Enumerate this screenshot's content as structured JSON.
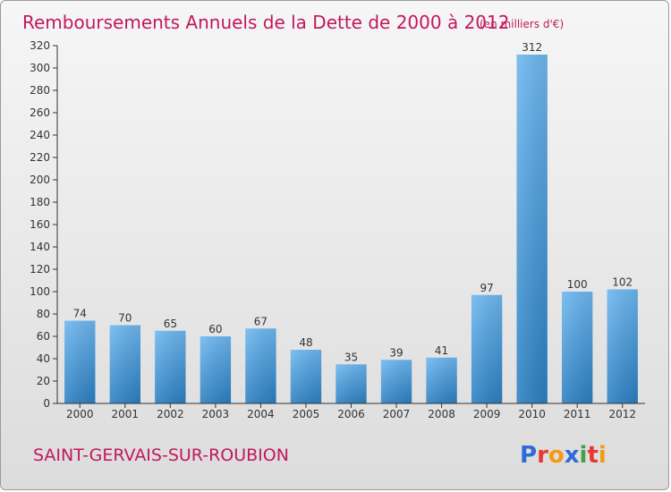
{
  "chart_data": {
    "type": "bar",
    "title": "Remboursements Annuels de la Dette de 2000 à 2012",
    "subtitle": "(en milliers d'€)",
    "categories": [
      "2000",
      "2001",
      "2002",
      "2003",
      "2004",
      "2005",
      "2006",
      "2007",
      "2008",
      "2009",
      "2010",
      "2011",
      "2012"
    ],
    "values": [
      74,
      70,
      65,
      60,
      67,
      48,
      35,
      39,
      41,
      97,
      312,
      100,
      102
    ],
    "ylim": [
      0,
      320
    ],
    "yticks": [
      0,
      20,
      40,
      60,
      80,
      100,
      120,
      140,
      160,
      180,
      200,
      220,
      240,
      260,
      280,
      300,
      320
    ],
    "grid": false,
    "xlabel": "",
    "ylabel": ""
  },
  "footer": {
    "commune": "SAINT-GERVAIS-SUR-ROUBION",
    "logo": "Proxiti"
  },
  "colors": {
    "title": "#c2185b",
    "bar_top": "#6db7f0",
    "bar_bottom": "#2b7fc2",
    "axis": "#333333"
  }
}
